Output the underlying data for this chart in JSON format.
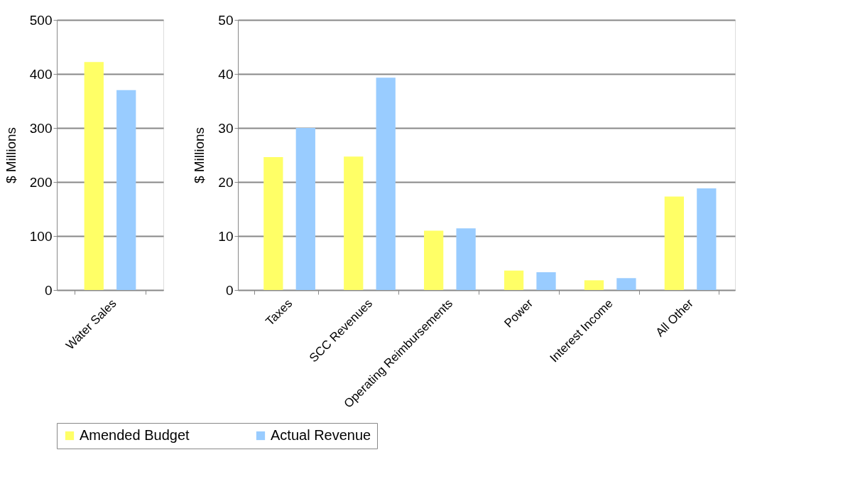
{
  "chart_data": [
    {
      "type": "bar",
      "categories": [
        "Water Sales"
      ],
      "ylabel": "$ Millions",
      "ylim": [
        0,
        500
      ],
      "yticks": [
        0,
        100,
        200,
        300,
        400,
        500
      ],
      "grid": "y",
      "legend": "bottom",
      "series": [
        {
          "name": "Amended Budget",
          "color": "#ffff66",
          "values": [
            422
          ]
        },
        {
          "name": "Actual Revenue",
          "color": "#99ccff",
          "values": [
            370
          ]
        }
      ]
    },
    {
      "type": "bar",
      "categories": [
        "Taxes",
        "SCC Revenues",
        "Operating Reimbursements",
        "Power",
        "Interest Income",
        "All Other"
      ],
      "ylabel": "$ Millions",
      "ylim": [
        0,
        50
      ],
      "yticks": [
        0,
        10,
        20,
        30,
        40,
        50
      ],
      "grid": "y",
      "legend": "bottom",
      "series": [
        {
          "name": "Amended Budget",
          "color": "#ffff66",
          "values": [
            24.6,
            24.7,
            11.0,
            3.6,
            1.8,
            17.3
          ]
        },
        {
          "name": "Actual Revenue",
          "color": "#99ccff",
          "values": [
            30.0,
            39.3,
            11.4,
            3.3,
            2.2,
            18.8
          ]
        }
      ]
    }
  ]
}
